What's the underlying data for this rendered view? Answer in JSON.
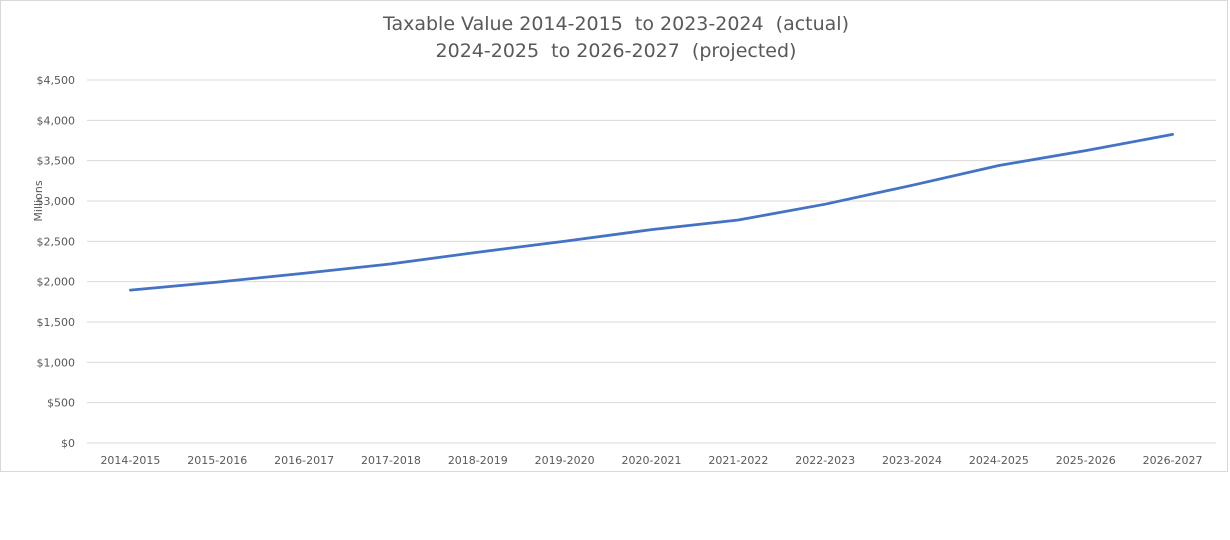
{
  "chart_data": {
    "type": "line",
    "title_line1": "Taxable Value 2014-2015  to 2023-2024  (actual)",
    "title_line2": "2024-2025  to 2026-2027  (projected)",
    "ylabel": "Millions",
    "xlabel": "",
    "categories": [
      "2014-2015",
      "2015-2016",
      "2016-2017",
      "2017-2018",
      "2018-2019",
      "2019-2020",
      "2020-2021",
      "2021-2022",
      "2022-2023",
      "2023-2024",
      "2024-2025",
      "2025-2026",
      "2026-2027"
    ],
    "series": [
      {
        "values": [
          1895,
          1995,
          2105,
          2220,
          2365,
          2500,
          2645,
          2765,
          2960,
          3195,
          3440,
          3625,
          3825
        ]
      }
    ],
    "ylim": [
      0,
      4500
    ],
    "yticks": [
      0,
      500,
      1000,
      1500,
      2000,
      2500,
      3000,
      3500,
      4000,
      4500
    ],
    "ytick_labels": [
      "$0",
      "$500",
      "$1,000",
      "$1,500",
      "$2,000",
      "$2,500",
      "$3,000",
      "$3,500",
      "$4,000",
      "$4,500"
    ],
    "grid": true,
    "legend": "none",
    "line_color": "#4472c4",
    "grid_color": "#d9d9d9"
  }
}
